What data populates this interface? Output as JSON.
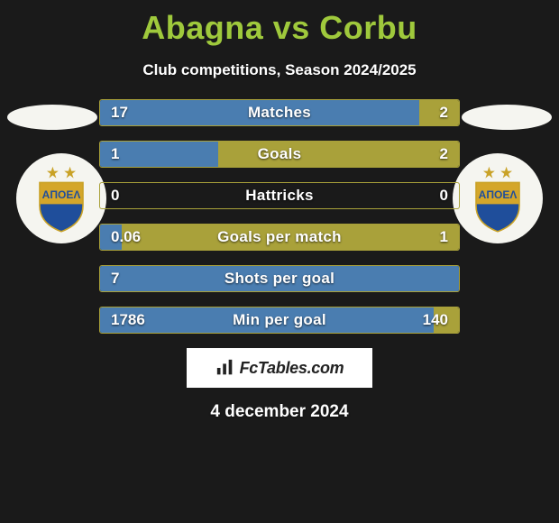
{
  "title": "Abagna vs Corbu",
  "subtitle": "Club competitions, Season 2024/2025",
  "date": "4 december 2024",
  "watermark": "FcTables.com",
  "colors": {
    "title": "#9fc93c",
    "text": "#ffffff",
    "background": "#1a1a1a",
    "bar_border": "#a9a13a",
    "fill_left": "#4a7db0",
    "fill_right": "#a9a13a",
    "badge_bg": "#f5f5f0"
  },
  "stats": [
    {
      "label": "Matches",
      "left_val": "17",
      "right_val": "2",
      "left_pct": 89,
      "right_pct": 11
    },
    {
      "label": "Goals",
      "left_val": "1",
      "right_val": "2",
      "left_pct": 33,
      "right_pct": 67
    },
    {
      "label": "Hattricks",
      "left_val": "0",
      "right_val": "0",
      "left_pct": 0,
      "right_pct": 0
    },
    {
      "label": "Goals per match",
      "left_val": "0.06",
      "right_val": "1",
      "left_pct": 6,
      "right_pct": 94
    },
    {
      "label": "Shots per goal",
      "left_val": "7",
      "right_val": "",
      "left_pct": 100,
      "right_pct": 0
    },
    {
      "label": "Min per goal",
      "left_val": "1786",
      "right_val": "140",
      "left_pct": 93,
      "right_pct": 7
    }
  ],
  "club_badge": {
    "name": "APOEL",
    "stars": 2,
    "star_color": "#c9a227",
    "shield_top": "#d4a62a",
    "shield_bottom": "#1f4e9b",
    "text_color": "#1f4e9b"
  }
}
